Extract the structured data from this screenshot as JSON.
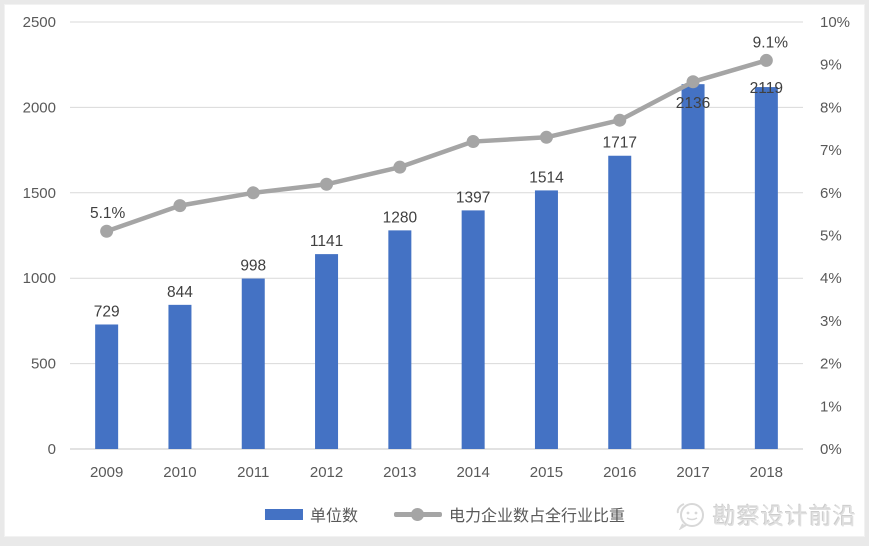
{
  "chart_data": {
    "type": "combo",
    "categories": [
      "2009",
      "2010",
      "2011",
      "2012",
      "2013",
      "2014",
      "2015",
      "2016",
      "2017",
      "2018"
    ],
    "series": [
      {
        "name": "单位数",
        "type": "bar",
        "axis": "left",
        "color": "#4472c4",
        "values": [
          729,
          844,
          998,
          1141,
          1280,
          1397,
          1514,
          1717,
          2136,
          2119
        ],
        "labels": [
          "729",
          "844",
          "998",
          "1141",
          "1280",
          "1397",
          "1514",
          "1717",
          "2136",
          "2119"
        ]
      },
      {
        "name": "电力企业数占全行业比重",
        "type": "line",
        "axis": "right",
        "color": "#a5a5a5",
        "values": [
          5.1,
          5.7,
          6.0,
          6.2,
          6.6,
          7.2,
          7.3,
          7.7,
          8.6,
          9.1
        ],
        "point_labels": [
          {
            "index": 0,
            "text": "5.1%"
          },
          {
            "index": 9,
            "text": "9.1%"
          }
        ]
      }
    ],
    "left_axis": {
      "min": 0,
      "max": 2500,
      "step": 500,
      "tick_labels": [
        "0",
        "500",
        "1000",
        "1500",
        "2000",
        "2500"
      ]
    },
    "right_axis": {
      "min": 0,
      "max": 10,
      "step": 1,
      "tick_labels": [
        "0%",
        "1%",
        "2%",
        "3%",
        "4%",
        "5%",
        "6%",
        "7%",
        "8%",
        "9%",
        "10%"
      ]
    },
    "grid": true,
    "legend_position": "bottom",
    "title": "",
    "xlabel": "",
    "ylabel": "",
    "style": {
      "gridline_color": "#d9d9d9",
      "axis_line_color": "#c6c6c6",
      "tick_text_color": "#595959",
      "data_label_color": "#404040",
      "bar_label_dy": [
        0,
        0,
        0,
        0,
        0,
        0,
        0,
        0,
        32,
        14
      ]
    }
  },
  "watermark": {
    "text": "勘察设计前沿",
    "icon": "chat-bubble-face-icon"
  }
}
